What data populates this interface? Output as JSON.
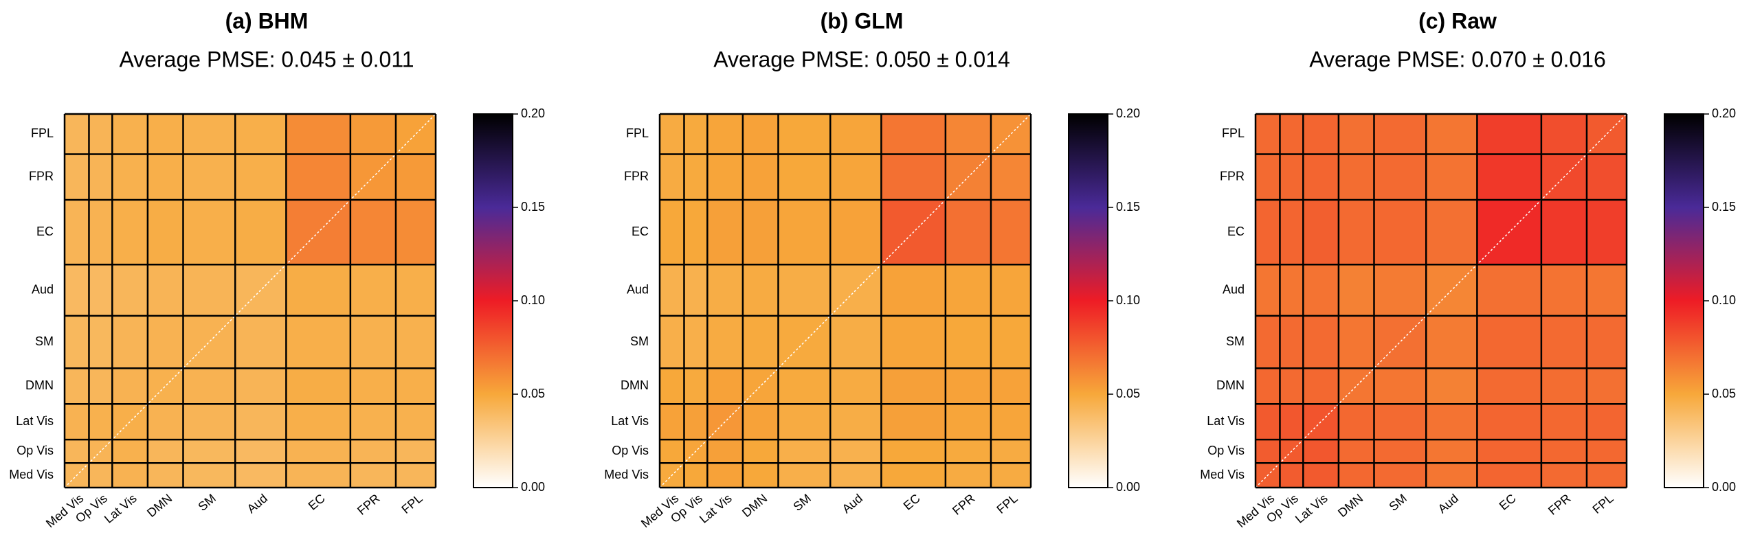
{
  "chart_data": [
    {
      "type": "heatmap",
      "title": "(a) BHM",
      "subtitle": "Average PMSE: 0.045 ± 0.011",
      "x_categories": [
        "Med Vis",
        "Op Vis",
        "Lat Vis",
        "DMN",
        "SM",
        "Aud",
        "EC",
        "FPR",
        "FPL"
      ],
      "y_categories": [
        "FPL",
        "FPR",
        "EC",
        "Aud",
        "SM",
        "DMN",
        "Lat Vis",
        "Op Vis",
        "Med Vis"
      ],
      "values": [
        [
          0.042,
          0.043,
          0.045,
          0.046,
          0.045,
          0.046,
          0.06,
          0.055,
          0.052
        ],
        [
          0.042,
          0.043,
          0.045,
          0.046,
          0.045,
          0.046,
          0.062,
          0.056,
          0.055
        ],
        [
          0.043,
          0.044,
          0.046,
          0.047,
          0.046,
          0.047,
          0.065,
          0.062,
          0.06
        ],
        [
          0.04,
          0.04,
          0.042,
          0.043,
          0.043,
          0.042,
          0.047,
          0.046,
          0.046
        ],
        [
          0.041,
          0.041,
          0.043,
          0.044,
          0.044,
          0.043,
          0.046,
          0.045,
          0.045
        ],
        [
          0.042,
          0.042,
          0.044,
          0.045,
          0.044,
          0.043,
          0.047,
          0.046,
          0.046
        ],
        [
          0.044,
          0.045,
          0.046,
          0.044,
          0.043,
          0.042,
          0.046,
          0.045,
          0.045
        ],
        [
          0.042,
          0.043,
          0.045,
          0.042,
          0.041,
          0.04,
          0.044,
          0.043,
          0.042
        ],
        [
          0.042,
          0.042,
          0.044,
          0.042,
          0.041,
          0.04,
          0.043,
          0.042,
          0.042
        ]
      ],
      "zlim": [
        0,
        0.2
      ],
      "zticks": [
        {
          "value": 0,
          "label": "0.00"
        },
        {
          "value": 0.05,
          "label": "0.05"
        },
        {
          "value": 0.1,
          "label": "0.10"
        },
        {
          "value": 0.15,
          "label": "0.15"
        },
        {
          "value": 0.2,
          "label": "0.20"
        }
      ],
      "colormap": [
        "#ffffff",
        "#f7a83a",
        "#ee1c25",
        "#4a2a98",
        "#000000"
      ]
    },
    {
      "type": "heatmap",
      "title": "(b) GLM",
      "subtitle": "Average PMSE: 0.050 ± 0.014",
      "x_categories": [
        "Med Vis",
        "Op Vis",
        "Lat Vis",
        "DMN",
        "SM",
        "Aud",
        "EC",
        "FPR",
        "FPL"
      ],
      "y_categories": [
        "FPL",
        "FPR",
        "EC",
        "Aud",
        "SM",
        "DMN",
        "Lat Vis",
        "Op Vis",
        "Med Vis"
      ],
      "values": [
        [
          0.048,
          0.049,
          0.051,
          0.052,
          0.05,
          0.051,
          0.068,
          0.062,
          0.058
        ],
        [
          0.048,
          0.049,
          0.051,
          0.052,
          0.05,
          0.051,
          0.07,
          0.064,
          0.062
        ],
        [
          0.05,
          0.05,
          0.053,
          0.053,
          0.051,
          0.052,
          0.078,
          0.07,
          0.068
        ],
        [
          0.045,
          0.045,
          0.047,
          0.048,
          0.047,
          0.046,
          0.052,
          0.051,
          0.051
        ],
        [
          0.046,
          0.046,
          0.048,
          0.049,
          0.049,
          0.047,
          0.051,
          0.05,
          0.05
        ],
        [
          0.05,
          0.049,
          0.052,
          0.051,
          0.049,
          0.048,
          0.053,
          0.052,
          0.052
        ],
        [
          0.052,
          0.053,
          0.056,
          0.052,
          0.048,
          0.047,
          0.053,
          0.051,
          0.051
        ],
        [
          0.05,
          0.051,
          0.053,
          0.05,
          0.046,
          0.045,
          0.05,
          0.049,
          0.048
        ],
        [
          0.049,
          0.05,
          0.052,
          0.05,
          0.046,
          0.045,
          0.05,
          0.048,
          0.048
        ]
      ],
      "zlim": [
        0,
        0.2
      ],
      "zticks": [
        {
          "value": 0,
          "label": "0.00"
        },
        {
          "value": 0.05,
          "label": "0.05"
        },
        {
          "value": 0.1,
          "label": "0.10"
        },
        {
          "value": 0.15,
          "label": "0.15"
        },
        {
          "value": 0.2,
          "label": "0.20"
        }
      ],
      "colormap": [
        "#ffffff",
        "#f7a83a",
        "#ee1c25",
        "#4a2a98",
        "#000000"
      ]
    },
    {
      "type": "heatmap",
      "title": "(c) Raw",
      "subtitle": "Average PMSE: 0.070 ± 0.016",
      "x_categories": [
        "Med Vis",
        "Op Vis",
        "Lat Vis",
        "DMN",
        "SM",
        "Aud",
        "EC",
        "FPR",
        "FPL"
      ],
      "y_categories": [
        "FPL",
        "FPR",
        "EC",
        "Aud",
        "SM",
        "DMN",
        "Lat Vis",
        "Op Vis",
        "Med Vis"
      ],
      "values": [
        [
          0.072,
          0.073,
          0.074,
          0.07,
          0.072,
          0.068,
          0.088,
          0.082,
          0.078
        ],
        [
          0.072,
          0.073,
          0.074,
          0.071,
          0.072,
          0.069,
          0.09,
          0.084,
          0.082
        ],
        [
          0.074,
          0.074,
          0.076,
          0.072,
          0.073,
          0.07,
          0.095,
          0.09,
          0.088
        ],
        [
          0.068,
          0.068,
          0.069,
          0.064,
          0.066,
          0.062,
          0.07,
          0.069,
          0.068
        ],
        [
          0.072,
          0.072,
          0.072,
          0.068,
          0.07,
          0.066,
          0.073,
          0.072,
          0.072
        ],
        [
          0.073,
          0.072,
          0.073,
          0.068,
          0.068,
          0.064,
          0.072,
          0.071,
          0.07
        ],
        [
          0.078,
          0.079,
          0.08,
          0.073,
          0.072,
          0.069,
          0.074,
          0.073,
          0.074
        ],
        [
          0.077,
          0.078,
          0.079,
          0.072,
          0.072,
          0.068,
          0.074,
          0.073,
          0.073
        ],
        [
          0.076,
          0.077,
          0.078,
          0.073,
          0.072,
          0.068,
          0.074,
          0.072,
          0.072
        ]
      ],
      "zlim": [
        0,
        0.2
      ],
      "zticks": [
        {
          "value": 0,
          "label": "0.00"
        },
        {
          "value": 0.05,
          "label": "0.05"
        },
        {
          "value": 0.1,
          "label": "0.10"
        },
        {
          "value": 0.15,
          "label": "0.15"
        },
        {
          "value": 0.2,
          "label": "0.20"
        }
      ],
      "colormap": [
        "#ffffff",
        "#f7a83a",
        "#ee1c25",
        "#4a2a98",
        "#000000"
      ]
    }
  ]
}
